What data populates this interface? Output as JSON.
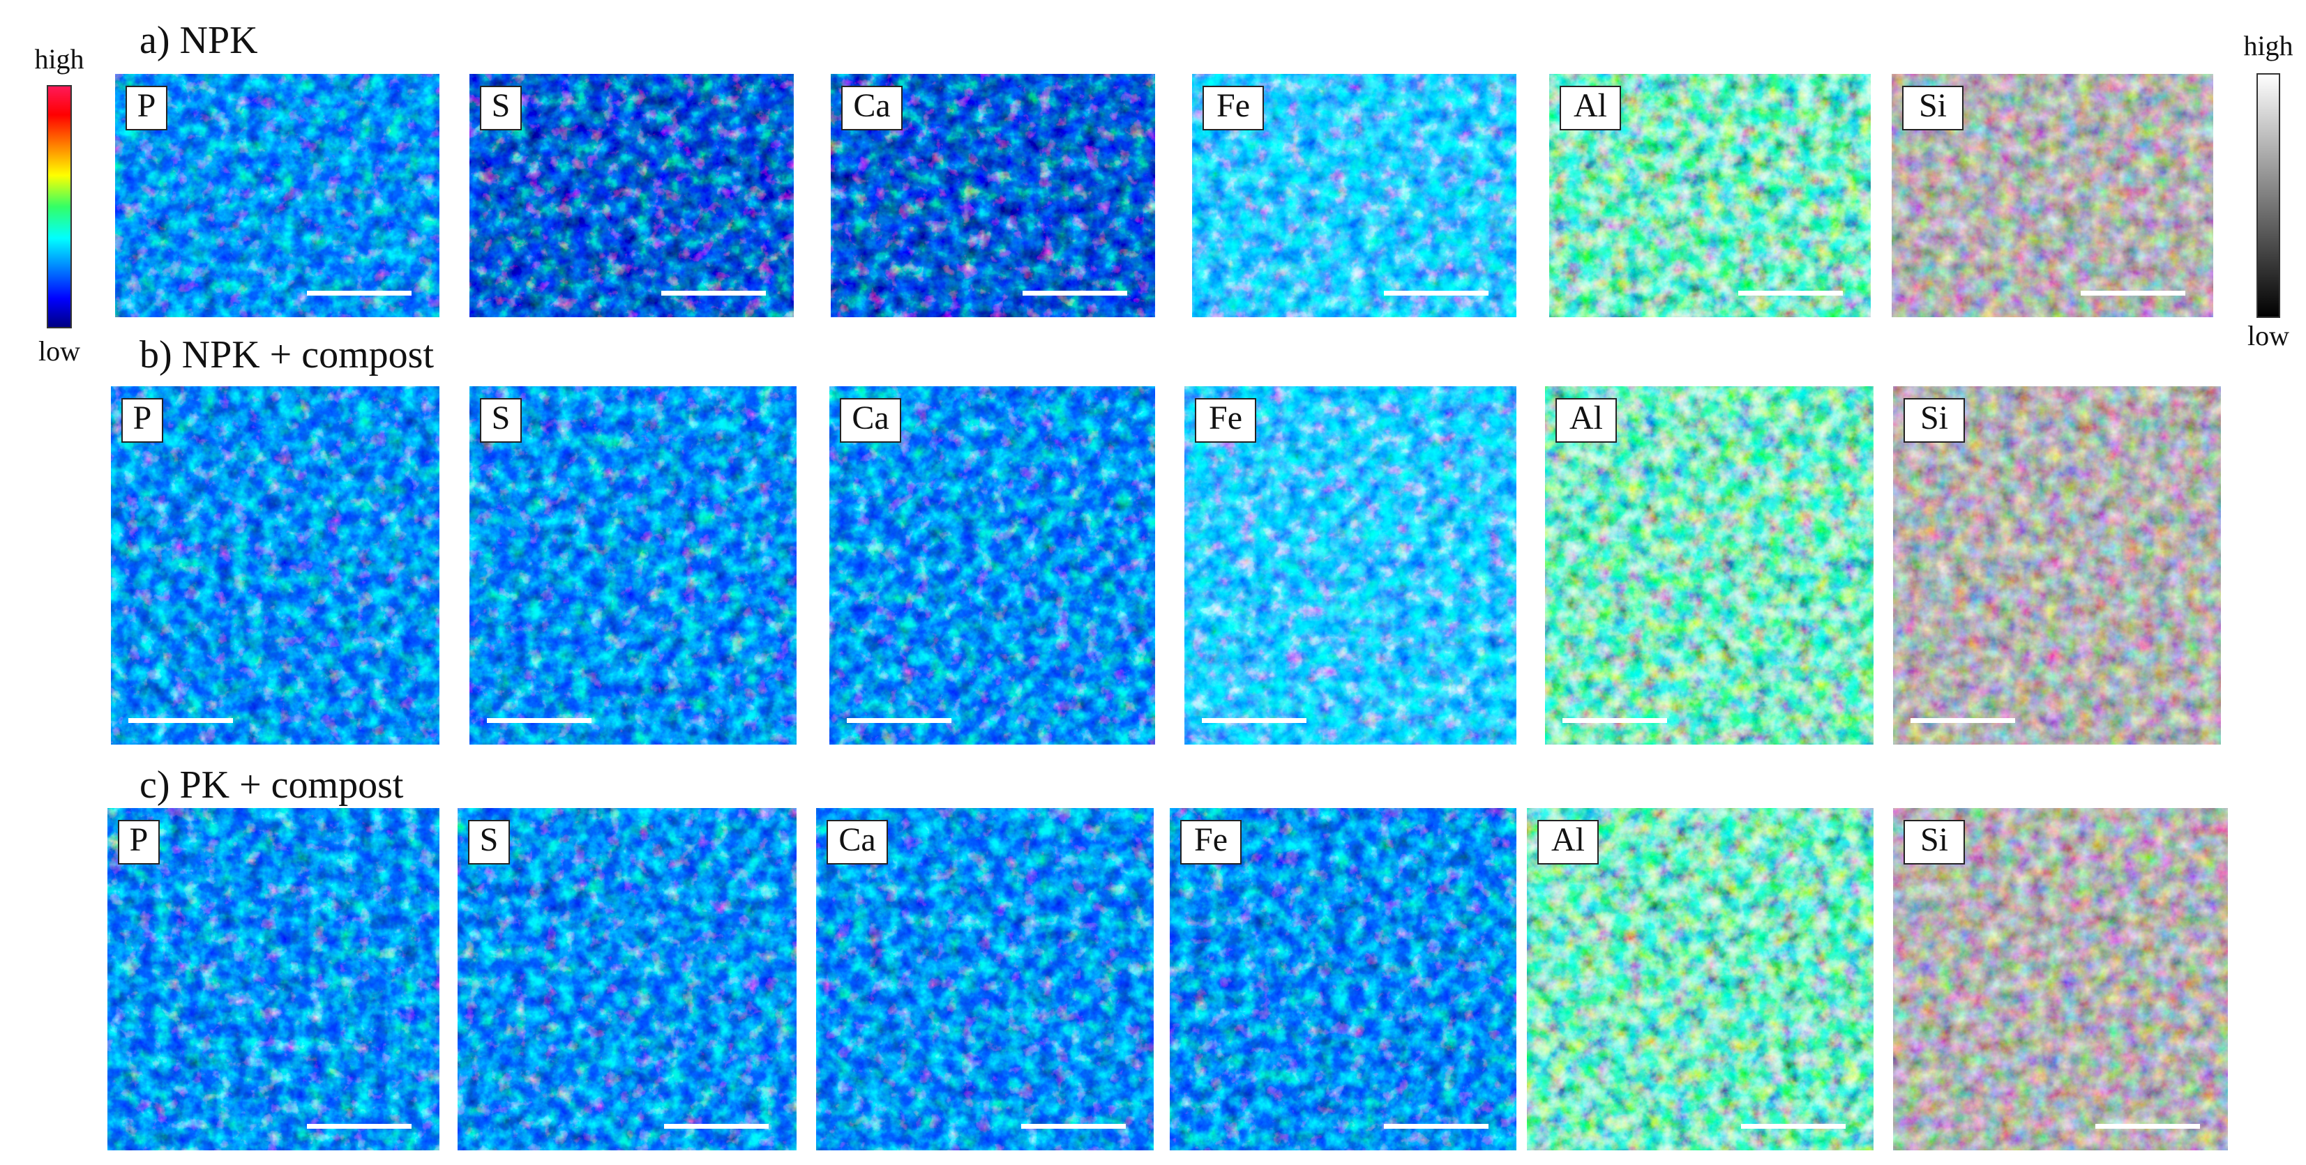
{
  "legend_left": {
    "high": "high",
    "low": "low"
  },
  "legend_right": {
    "high": "high",
    "low": "low"
  },
  "rows": [
    {
      "title": "a) NPK",
      "panels": [
        "P",
        "S",
        "Ca",
        "Fe",
        "Al",
        "Si"
      ]
    },
    {
      "title": "b) NPK + compost",
      "panels": [
        "P",
        "S",
        "Ca",
        "Fe",
        "Al",
        "Si"
      ]
    },
    {
      "title": "c) PK + compost",
      "panels": [
        "P",
        "S",
        "Ca",
        "Fe",
        "Al",
        "Si"
      ]
    }
  ]
}
